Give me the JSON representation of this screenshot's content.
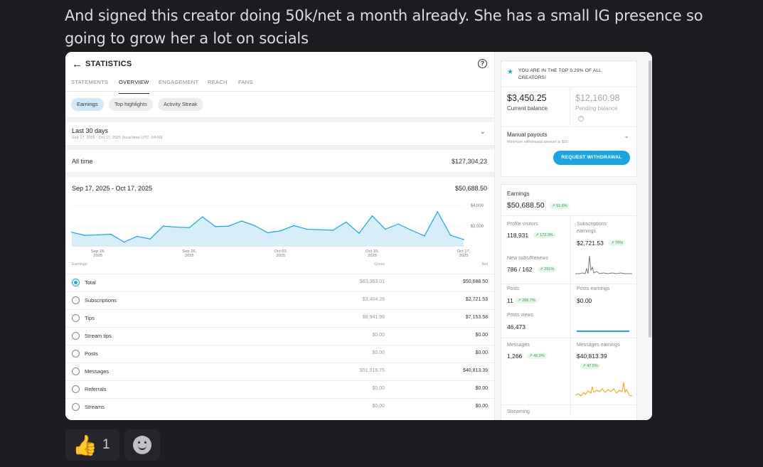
{
  "message": "And signed this creator doing 50k/net a month already. She has a small IG presence so going to grow her a lot on socials",
  "stats": {
    "title": "STATISTICS",
    "tabs": [
      "STATEMENTS",
      "OVERVIEW",
      "ENGAGEMENT",
      "REACH",
      "FANS"
    ],
    "active_tab": "OVERVIEW",
    "pills": [
      "Earnings",
      "Top highlights",
      "Activity Streak"
    ],
    "period_label": "Last 30 days",
    "period_dates": "Sep 17, 2025 - Oct 17, 2025 (local time UTC -04:00)",
    "all_time_label": "All time",
    "all_time_value": "$127,304.23",
    "range_label": "Sep 17, 2025 - Oct 17, 2025",
    "range_value": "$50,688.50",
    "col_earnings": "Earnings",
    "col_gross": "Gross",
    "col_net": "Net",
    "rows": [
      {
        "label": "Total",
        "gross": "$63,363.01",
        "net": "$50,688.50"
      },
      {
        "label": "Subscriptions",
        "gross": "$3,404.28",
        "net": "$2,721.53"
      },
      {
        "label": "Tips",
        "gross": "$8,941.98",
        "net": "$7,153.58"
      },
      {
        "label": "Stream tips",
        "gross": "$0.00",
        "net": "$0.00"
      },
      {
        "label": "Posts",
        "gross": "$0.00",
        "net": "$0.00"
      },
      {
        "label": "Messages",
        "gross": "$51,016.75",
        "net": "$40,813.39"
      },
      {
        "label": "Referrals",
        "gross": "$0.00",
        "net": "$0.00"
      },
      {
        "label": "Streams",
        "gross": "$0.00",
        "net": "$0.00"
      }
    ]
  },
  "chart_data": {
    "type": "area",
    "x_ticks": [
      "Sep 19, 2025",
      "Sep 26, 2025",
      "Oct 03, 2025",
      "Oct 10, 2025",
      "Oct 17, 2025"
    ],
    "y_ticks": [
      "$4,000",
      "$2,000"
    ],
    "ylim": [
      0,
      4500
    ],
    "values": [
      1400,
      1100,
      1150,
      1200,
      450,
      1000,
      750,
      2000,
      1900,
      1850,
      2900,
      1950,
      2000,
      2500,
      2050,
      1350,
      1550,
      2050,
      1700,
      1650,
      1600,
      2400,
      1300,
      3000,
      1700,
      2200,
      1600,
      1050,
      3400,
      1100,
      700
    ],
    "color": "#1aa7e1"
  },
  "side": {
    "rank_text": "YOU ARE IN THE TOP 0.29% OF ALL CREATORS!",
    "current_balance": "$3,450.25",
    "current_label": "Current balance",
    "pending_balance": "$12,160.98",
    "pending_label": "Pending balance",
    "payout_label": "Manual payouts",
    "payout_min": "Minimum withdrawal amount is $20",
    "withdraw_button": "REQUEST WITHDRAWAL",
    "earnings_label": "Earnings",
    "earnings_value": "$50,688.50",
    "earnings_change": "↗ 51.6%",
    "profile_visitors_label": "Profile visitors",
    "profile_visitors": "118,931",
    "profile_visitors_change": "↗ 172.3%",
    "subs_earnings_label": "Subscriptions earnings",
    "subs_earnings": "$2,721.53",
    "subs_earnings_change": "↗ 76%",
    "new_subs_label": "New subs/Renews",
    "new_subs": "786 / 162",
    "new_subs_change": "↗ 291%",
    "posts_label": "Posts",
    "posts": "11",
    "posts_change": "↗ 266.7%",
    "posts_earnings_label": "Posts earnings",
    "posts_earnings": "$0.00",
    "posts_views_label": "Posts views",
    "posts_views": "46,473",
    "messages_label": "Messages",
    "messages": "1,266",
    "messages_change": "↗ 45.9%",
    "messages_earnings_label": "Messages earnings",
    "messages_earnings": "$40,813.39",
    "messages_earnings_change": "↗ 47.5%",
    "streaming_label": "Streaming",
    "accent": "#1aa7e1",
    "spark_gray": "#777777",
    "spark_orange": "#f0a500"
  },
  "reactions": {
    "thumbs_count": "1"
  }
}
